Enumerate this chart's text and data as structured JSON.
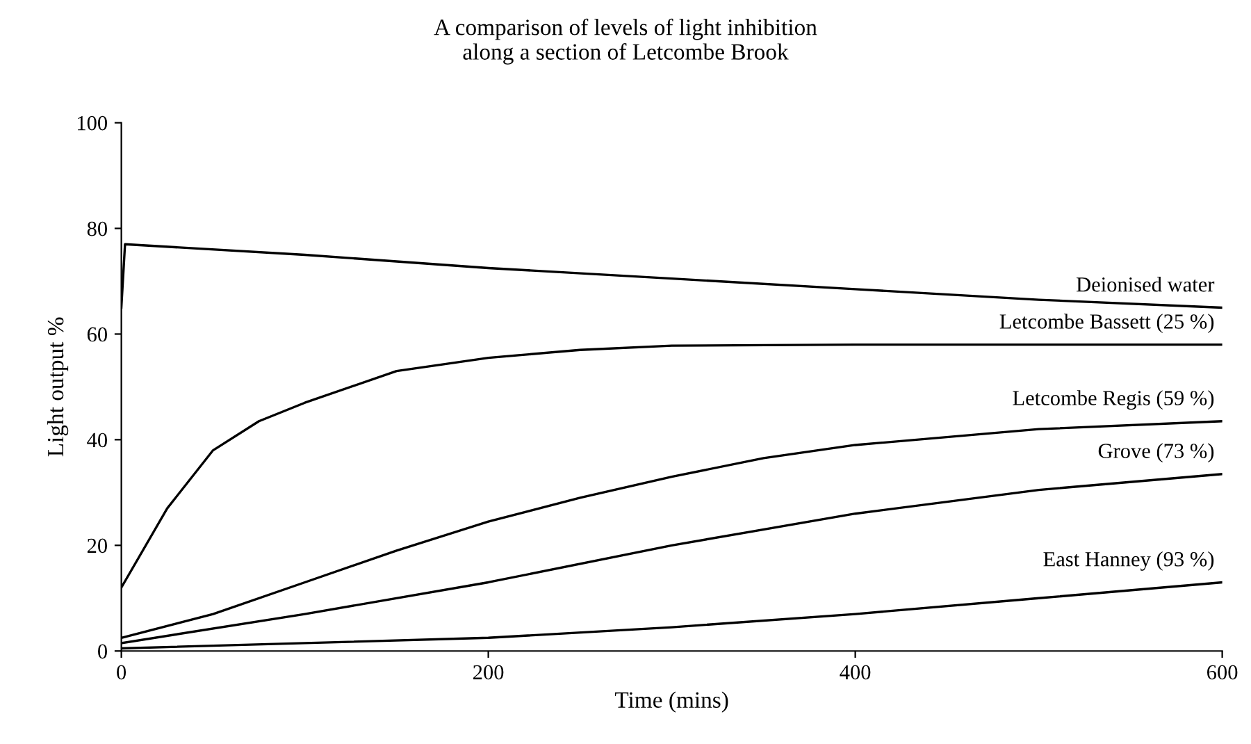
{
  "chart_data": {
    "type": "line",
    "title": "A comparison of levels of light inhibition\nalong a section of Letcombe Brook",
    "xlabel": "Time (mins)",
    "ylabel": "Light output %",
    "xlim": [
      0,
      600
    ],
    "xticks": [
      0,
      200,
      400,
      600
    ],
    "ylim": [
      0,
      100
    ],
    "yticks": [
      0,
      20,
      40,
      60,
      80,
      100
    ],
    "grid": false,
    "legend": false,
    "marker": "none",
    "line_style": "solid",
    "series": [
      {
        "name": "Deionised water",
        "color": "#000000",
        "x": [
          0,
          2,
          100,
          200,
          300,
          400,
          500,
          600
        ],
        "values": [
          65,
          77,
          75,
          72.5,
          70.5,
          68.5,
          66.5,
          65
        ]
      },
      {
        "name": "Letcombe Bassett (25 %)",
        "color": "#000000",
        "x": [
          0,
          25,
          50,
          75,
          100,
          150,
          200,
          250,
          300,
          400,
          500,
          600
        ],
        "values": [
          12,
          27,
          38,
          43.5,
          47,
          53,
          55.5,
          57,
          57.8,
          58,
          58,
          58
        ]
      },
      {
        "name": "Letcombe Regis (59 %)",
        "color": "#000000",
        "x": [
          0,
          50,
          100,
          150,
          200,
          250,
          300,
          350,
          400,
          500,
          600
        ],
        "values": [
          2.5,
          7,
          13,
          19,
          24.5,
          29,
          33,
          36.5,
          39,
          42,
          43.5
        ]
      },
      {
        "name": "Grove (73 %)",
        "color": "#000000",
        "x": [
          0,
          100,
          200,
          300,
          400,
          500,
          600
        ],
        "values": [
          1.5,
          7,
          13,
          20,
          26,
          30.5,
          33.5
        ]
      },
      {
        "name": "East Hanney (93 %)",
        "color": "#000000",
        "x": [
          0,
          100,
          200,
          300,
          400,
          500,
          600
        ],
        "values": [
          0.5,
          1.5,
          2.5,
          4.5,
          7,
          10,
          13
        ]
      }
    ]
  }
}
